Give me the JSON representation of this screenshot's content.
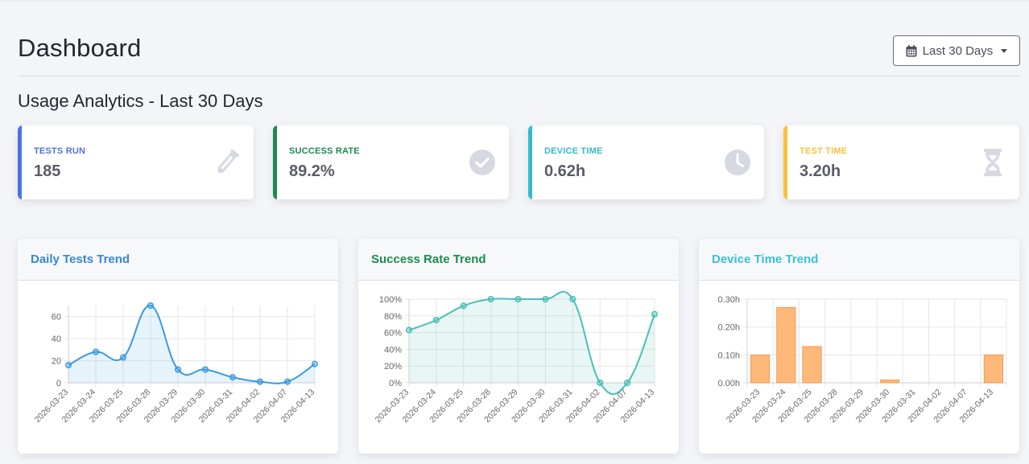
{
  "header": {
    "title": "Dashboard",
    "date_filter": "Last 30 Days"
  },
  "section": {
    "title": "Usage Analytics - Last 30 Days"
  },
  "stats": [
    {
      "label": "TESTS RUN",
      "value": "185",
      "color": "#4e73df",
      "icon": "flask-icon"
    },
    {
      "label": "SUCCESS RATE",
      "value": "89.2%",
      "color": "#1d8a4e",
      "icon": "check-circle-icon"
    },
    {
      "label": "DEVICE TIME",
      "value": "0.62h",
      "color": "#36b9cc",
      "icon": "clock-icon"
    },
    {
      "label": "TEST TIME",
      "value": "3.20h",
      "color": "#f6c23e",
      "icon": "hourglass-icon"
    }
  ],
  "chart_data": [
    {
      "type": "line",
      "title": "Daily Tests Trend",
      "title_color": "#3a86d6",
      "x": [
        "2026-03-23",
        "2026-03-24",
        "2026-03-25",
        "2026-03-28",
        "2026-03-29",
        "2026-03-30",
        "2026-03-31",
        "2026-04-02",
        "2026-04-07",
        "2026-04-13"
      ],
      "series": [
        {
          "values": [
            16,
            28,
            23,
            70,
            12,
            12,
            5,
            1,
            1,
            17
          ]
        }
      ],
      "ylim": [
        0,
        70
      ],
      "yticks": [
        "0",
        "20",
        "40",
        "60"
      ],
      "grid": true,
      "line_color": "#3a9be0",
      "fill_color": "rgba(58,155,224,0.12)"
    },
    {
      "type": "line",
      "title": "Success Rate Trend",
      "title_color": "#1d8a4e",
      "x": [
        "2026-03-23",
        "2026-03-24",
        "2026-03-25",
        "2026-03-28",
        "2026-03-29",
        "2026-03-30",
        "2026-03-31",
        "2026-04-02",
        "2026-04-07",
        "2026-04-13"
      ],
      "series": [
        {
          "values": [
            63,
            75,
            92,
            100,
            100,
            100,
            100,
            0,
            0,
            82
          ]
        }
      ],
      "ylim": [
        0,
        100
      ],
      "yticks": [
        "0%",
        "20%",
        "40%",
        "60%",
        "80%",
        "100%"
      ],
      "grid": true,
      "line_color": "#4bbfb7",
      "fill_color": "rgba(75,191,183,0.13)"
    },
    {
      "type": "bar",
      "title": "Device Time Trend",
      "title_color": "#36c2d6",
      "x": [
        "2026-03-23",
        "2026-03-24",
        "2026-03-25",
        "2026-03-28",
        "2026-03-29",
        "2026-03-30",
        "2026-03-31",
        "2026-04-02",
        "2026-04-07",
        "2026-04-13"
      ],
      "series": [
        {
          "values": [
            0.1,
            0.27,
            0.13,
            0.0,
            0.0,
            0.01,
            0.0,
            0.0,
            0.0,
            0.1
          ]
        }
      ],
      "ylim": [
        0,
        0.3
      ],
      "yticks": [
        "0.00h",
        "0.10h",
        "0.20h",
        "0.30h"
      ],
      "grid": true,
      "bar_color": "#fdb87a",
      "bar_border": "#f79a4b"
    }
  ]
}
